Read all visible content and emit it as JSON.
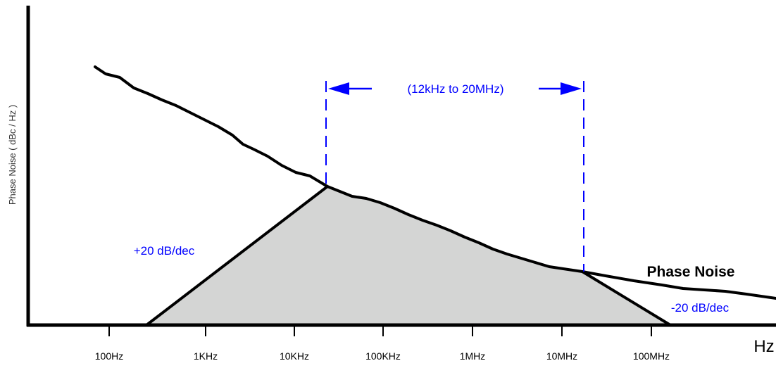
{
  "colors": {
    "axis": "#000000",
    "curve": "#000000",
    "fill": "#d4d5d4",
    "annotation": "#0000ff"
  },
  "y_axis_label": "Phase Noise ( dBc / Hz )",
  "x_axis_unit": "Hz",
  "x_ticks": [
    "100Hz",
    "1KHz",
    "10KHz",
    "100KHz",
    "1MHz",
    "10MHz",
    "100MHz"
  ],
  "range_label": "(12kHz to 20MHz)",
  "slope_up_label": "+20 dB/dec",
  "slope_down_label": "-20 dB/dec",
  "curve_label": "Phase Noise"
}
